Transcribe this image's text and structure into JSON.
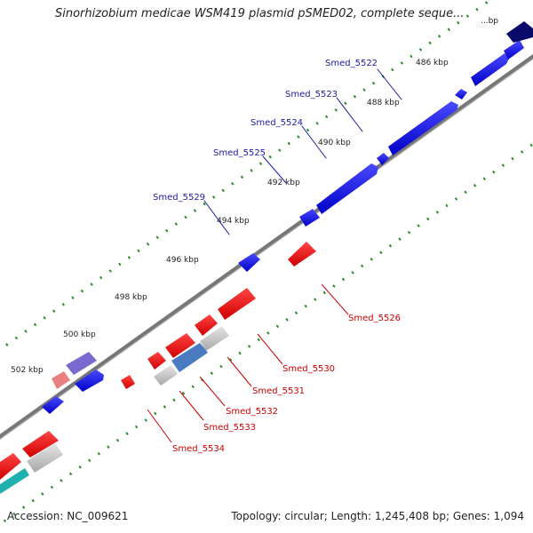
{
  "title": "Sinorhizobium medicae WSM419 plasmid pSMED02, complete seque...",
  "footer": {
    "accession": "Accession: NC_009621",
    "summary": "Topology: circular; Length: 1,245,408 bp; Genes: 1,094"
  },
  "ticks": [
    {
      "label": "486 kbp"
    },
    {
      "label": "488 kbp"
    },
    {
      "label": "490 kbp"
    },
    {
      "label": "492 kbp"
    },
    {
      "label": "494 kbp"
    },
    {
      "label": "496 kbp"
    },
    {
      "label": "498 kbp"
    },
    {
      "label": "500 kbp"
    },
    {
      "label": "502 kbp"
    },
    {
      "label": "...bp"
    }
  ],
  "genes_top": [
    {
      "name": "Smed_5522"
    },
    {
      "name": "Smed_5523"
    },
    {
      "name": "Smed_5524"
    },
    {
      "name": "Smed_5525"
    },
    {
      "name": "Smed_5529"
    }
  ],
  "genes_bottom": [
    {
      "name": "Smed_5526"
    },
    {
      "name": "Smed_5530"
    },
    {
      "name": "Smed_5531"
    },
    {
      "name": "Smed_5532"
    },
    {
      "name": "Smed_5533"
    },
    {
      "name": "Smed_5534"
    }
  ],
  "colors": {
    "forward_gene": "#0000ee",
    "reverse_gene": "#ee0000",
    "backbone": "#888888",
    "tick_dots": "#2a8a2a",
    "label_top": "#1a1aaa",
    "label_bottom": "#cc0000"
  }
}
